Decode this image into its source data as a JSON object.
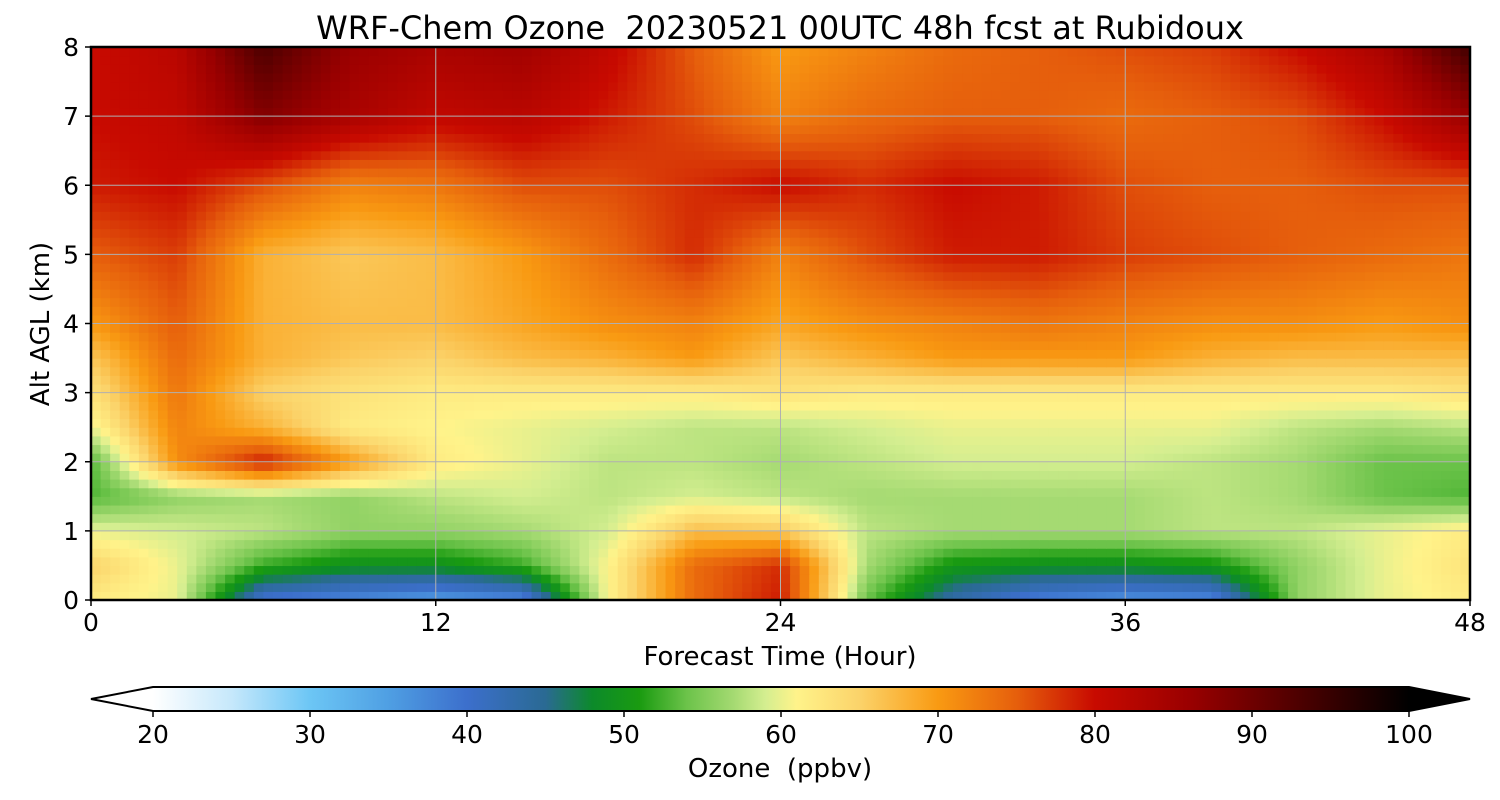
{
  "chart_data": {
    "type": "heatmap",
    "title": "WRF-Chem Ozone  20230521 00UTC 48h fcst at Rubidoux",
    "xlabel": "Forecast Time (Hour)",
    "ylabel": "Alt AGL (km)",
    "xlim": [
      0,
      48
    ],
    "ylim": [
      0,
      8
    ],
    "xticks": [
      0,
      12,
      24,
      36,
      48
    ],
    "yticks": [
      0,
      1,
      2,
      3,
      4,
      5,
      6,
      7,
      8
    ],
    "grid": true,
    "colorbar": {
      "label": "Ozone  (ppbv)",
      "range": [
        20,
        100
      ],
      "ticks": [
        20,
        30,
        40,
        50,
        60,
        70,
        80,
        90,
        100
      ],
      "extend": "both",
      "orientation": "horizontal",
      "placement": "bottom",
      "stops": [
        {
          "v": 20,
          "c": "#ffffff"
        },
        {
          "v": 25,
          "c": "#c6e8fb"
        },
        {
          "v": 30,
          "c": "#6cc6f5"
        },
        {
          "v": 35,
          "c": "#4f9fe3"
        },
        {
          "v": 40,
          "c": "#3c6fcc"
        },
        {
          "v": 45,
          "c": "#2a6a93"
        },
        {
          "v": 48,
          "c": "#0c8a2a"
        },
        {
          "v": 51,
          "c": "#1a9b10"
        },
        {
          "v": 54,
          "c": "#6cc34a"
        },
        {
          "v": 57,
          "c": "#a5da72"
        },
        {
          "v": 59,
          "c": "#d4ee90"
        },
        {
          "v": 61,
          "c": "#fff38a"
        },
        {
          "v": 65,
          "c": "#fbd36a"
        },
        {
          "v": 70,
          "c": "#f99a12"
        },
        {
          "v": 75,
          "c": "#e65f0c"
        },
        {
          "v": 80,
          "c": "#c80a00"
        },
        {
          "v": 86,
          "c": "#9a0000"
        },
        {
          "v": 93,
          "c": "#4d0000"
        },
        {
          "v": 100,
          "c": "#000000"
        }
      ]
    },
    "x": [
      0,
      3,
      6,
      9,
      12,
      15,
      18,
      21,
      24,
      27,
      30,
      33,
      36,
      39,
      42,
      45,
      48
    ],
    "y": [
      0,
      0.5,
      1,
      1.5,
      2,
      2.5,
      3,
      3.5,
      4,
      5,
      6,
      7,
      8
    ],
    "z": [
      [
        62,
        60,
        39,
        37,
        35,
        37,
        61,
        74,
        79,
        54,
        43,
        38,
        36,
        37,
        56,
        60,
        62
      ],
      [
        65,
        60,
        52,
        49,
        49,
        52,
        61,
        74,
        78,
        57,
        50,
        49,
        49,
        50,
        56,
        60,
        63
      ],
      [
        60,
        59,
        58,
        56,
        56,
        57,
        59,
        67,
        66,
        58,
        57,
        57,
        57,
        58,
        58,
        60,
        62
      ],
      [
        53,
        56,
        57,
        56,
        58,
        59,
        58,
        59,
        58,
        57,
        57,
        57,
        57,
        58,
        57,
        54,
        53
      ],
      [
        53,
        71,
        79,
        70,
        62,
        60,
        58,
        58,
        57,
        58,
        59,
        59,
        59,
        58,
        57,
        54,
        54
      ],
      [
        60,
        72,
        68,
        62,
        61,
        60,
        59,
        58,
        58,
        59,
        60,
        60,
        60,
        60,
        58,
        57,
        58
      ],
      [
        63,
        73,
        65,
        63,
        62,
        62,
        62,
        62,
        63,
        62,
        62,
        62,
        62,
        62,
        62,
        62,
        63
      ],
      [
        66,
        74,
        68,
        66,
        65,
        67,
        68,
        70,
        66,
        68,
        70,
        70,
        70,
        68,
        67,
        67,
        67
      ],
      [
        70,
        75,
        68,
        67,
        67,
        69,
        71,
        72,
        69,
        71,
        72,
        73,
        72,
        71,
        71,
        70,
        71
      ],
      [
        75,
        77,
        68,
        66,
        67,
        70,
        74,
        78,
        72,
        76,
        79,
        79,
        77,
        76,
        75,
        74,
        73
      ],
      [
        79,
        80,
        76,
        72,
        73,
        76,
        76,
        78,
        80,
        78,
        80,
        79,
        76,
        75,
        75,
        76,
        76
      ],
      [
        80,
        81,
        88,
        84,
        81,
        82,
        79,
        76,
        72,
        74,
        75,
        75,
        74,
        75,
        76,
        80,
        86
      ],
      [
        80,
        82,
        93,
        86,
        84,
        85,
        81,
        75,
        70,
        72,
        74,
        75,
        76,
        77,
        80,
        84,
        94
      ]
    ]
  }
}
